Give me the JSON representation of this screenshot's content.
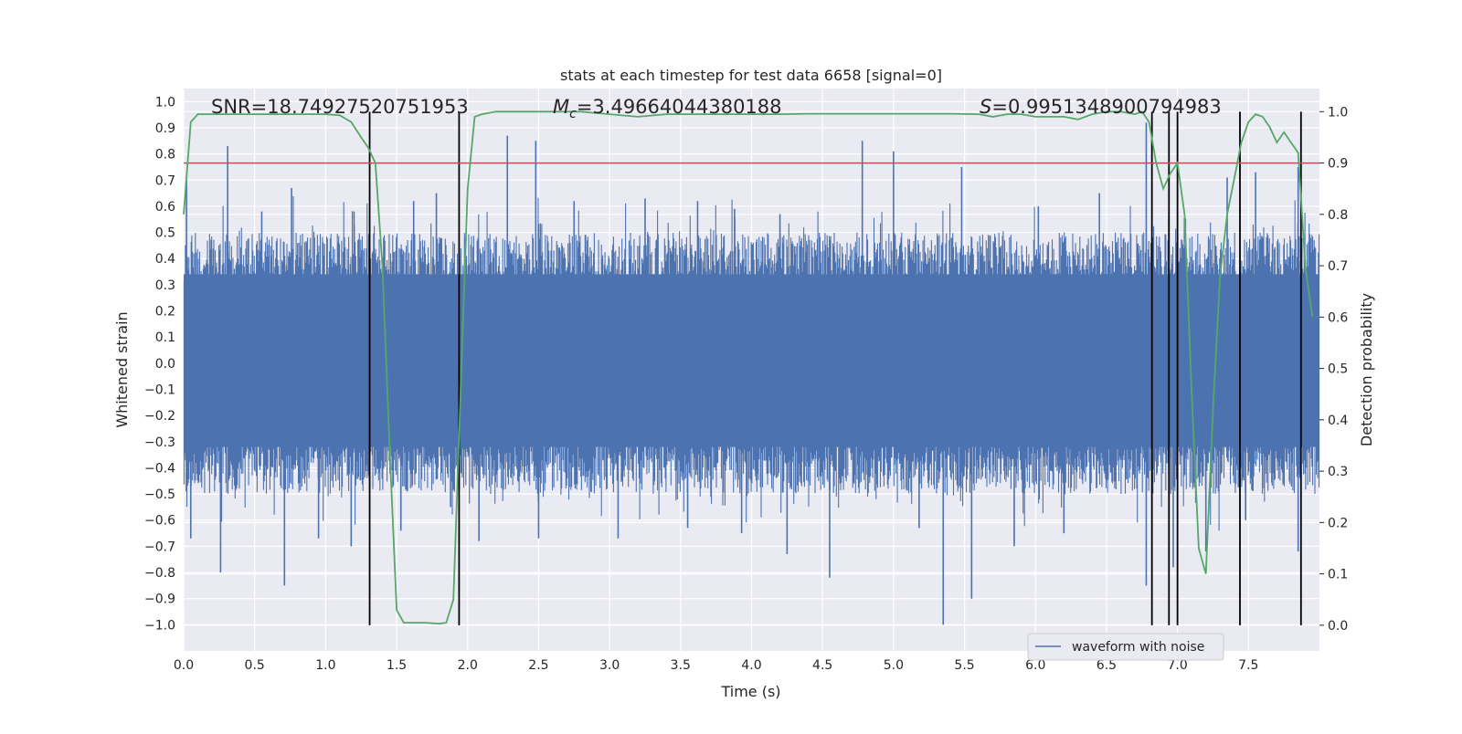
{
  "chart_data": {
    "type": "line",
    "title": "stats at each timestep for test data 6658 [signal=0]",
    "xlabel": "Time (s)",
    "ylabel": "Whitened strain",
    "y2label": "Detection probability",
    "xlim": [
      0,
      8
    ],
    "ylim": [
      -1.1,
      1.05
    ],
    "y2lim": [
      -0.05,
      1.045
    ],
    "x_ticks": [
      "0.0",
      "0.5",
      "1.0",
      "1.5",
      "2.0",
      "2.5",
      "3.0",
      "3.5",
      "4.0",
      "4.5",
      "5.0",
      "5.5",
      "6.0",
      "6.5",
      "7.0",
      "7.5"
    ],
    "y_ticks": [
      "1.0",
      "0.9",
      "0.8",
      "0.7",
      "0.6",
      "0.5",
      "0.4",
      "0.3",
      "0.2",
      "0.1",
      "0.0",
      "−0.1",
      "−0.2",
      "−0.3",
      "−0.4",
      "−0.5",
      "−0.6",
      "−0.7",
      "−0.8",
      "−0.9",
      "−1.0"
    ],
    "y2_ticks": [
      "1.0",
      "0.9",
      "0.8",
      "0.7",
      "0.6",
      "0.5",
      "0.4",
      "0.3",
      "0.2",
      "0.1",
      "0.0"
    ],
    "annotations": {
      "snr": "SNR=18.74927520751953",
      "mc_symbol": "M",
      "mc_sub": "c",
      "mc_value": "=3.49664044380188",
      "s_symbol": "S",
      "s_value": "=0.9951348900794983"
    },
    "legend": {
      "label": "waveform with noise",
      "location": "lower right"
    },
    "threshold_line": {
      "y2": 0.9,
      "color": "#c44e52"
    },
    "detection_probability": {
      "color": "#55a868",
      "x": [
        0.0,
        0.05,
        0.1,
        0.2,
        0.4,
        0.6,
        0.8,
        1.0,
        1.1,
        1.18,
        1.25,
        1.3,
        1.35,
        1.4,
        1.45,
        1.5,
        1.55,
        1.6,
        1.7,
        1.8,
        1.85,
        1.9,
        1.95,
        2.0,
        2.05,
        2.1,
        2.2,
        2.4,
        2.6,
        2.8,
        3.0,
        3.2,
        3.4,
        3.6,
        3.8,
        4.0,
        4.2,
        4.4,
        4.6,
        4.8,
        5.0,
        5.2,
        5.4,
        5.6,
        5.7,
        5.8,
        5.9,
        6.0,
        6.1,
        6.2,
        6.3,
        6.4,
        6.5,
        6.6,
        6.7,
        6.75,
        6.8,
        6.85,
        6.9,
        6.95,
        7.0,
        7.05,
        7.1,
        7.15,
        7.2,
        7.25,
        7.3,
        7.35,
        7.4,
        7.45,
        7.5,
        7.55,
        7.6,
        7.65,
        7.7,
        7.75,
        7.8,
        7.85,
        7.9,
        7.95
      ],
      "y": [
        0.8,
        0.98,
        0.995,
        0.995,
        0.995,
        0.995,
        0.995,
        0.995,
        0.993,
        0.98,
        0.95,
        0.93,
        0.9,
        0.7,
        0.35,
        0.03,
        0.005,
        0.005,
        0.005,
        0.003,
        0.005,
        0.05,
        0.45,
        0.85,
        0.99,
        0.995,
        1.0,
        1.0,
        1.0,
        1.0,
        0.995,
        0.99,
        0.995,
        0.995,
        0.995,
        0.995,
        0.995,
        0.996,
        0.996,
        0.996,
        0.996,
        0.996,
        0.996,
        0.995,
        0.99,
        0.995,
        0.995,
        0.99,
        0.99,
        0.99,
        0.985,
        0.995,
        1.0,
        1.0,
        0.995,
        1.0,
        0.98,
        0.9,
        0.85,
        0.88,
        0.9,
        0.8,
        0.45,
        0.15,
        0.1,
        0.42,
        0.68,
        0.8,
        0.87,
        0.94,
        0.98,
        0.995,
        0.99,
        0.97,
        0.94,
        0.96,
        0.94,
        0.92,
        0.7,
        0.6
      ]
    },
    "waveform": {
      "name": "waveform with noise",
      "color": "#4c72b0",
      "description_count": 1600,
      "spikes": [
        [
          0.02,
          0.7
        ],
        [
          0.31,
          0.83
        ],
        [
          0.55,
          0.58
        ],
        [
          0.76,
          0.67
        ],
        [
          1.2,
          0.58
        ],
        [
          1.62,
          0.62
        ],
        [
          1.78,
          0.65
        ],
        [
          2.28,
          0.87
        ],
        [
          2.48,
          0.85
        ],
        [
          2.75,
          0.62
        ],
        [
          3.25,
          0.63
        ],
        [
          3.62,
          0.62
        ],
        [
          3.88,
          0.59
        ],
        [
          4.2,
          0.57
        ],
        [
          4.78,
          0.85
        ],
        [
          5.0,
          0.81
        ],
        [
          5.48,
          0.75
        ],
        [
          6.02,
          0.6
        ],
        [
          6.45,
          0.65
        ],
        [
          6.78,
          0.92
        ],
        [
          7.35,
          0.71
        ],
        [
          7.55,
          0.73
        ],
        [
          7.85,
          0.75
        ],
        [
          0.05,
          -0.67
        ],
        [
          0.26,
          -0.8
        ],
        [
          0.71,
          -0.85
        ],
        [
          0.95,
          -0.67
        ],
        [
          1.18,
          -0.7
        ],
        [
          1.53,
          -0.64
        ],
        [
          1.88,
          -0.55
        ],
        [
          2.08,
          -0.68
        ],
        [
          2.5,
          -0.67
        ],
        [
          3.06,
          -0.67
        ],
        [
          3.55,
          -0.63
        ],
        [
          3.93,
          -0.65
        ],
        [
          4.25,
          -0.73
        ],
        [
          4.55,
          -0.82
        ],
        [
          5.18,
          -0.63
        ],
        [
          5.35,
          -1.0
        ],
        [
          5.55,
          -0.9
        ],
        [
          5.85,
          -0.7
        ],
        [
          6.2,
          -0.65
        ],
        [
          6.78,
          -0.85
        ],
        [
          6.97,
          -0.78
        ],
        [
          7.2,
          -0.72
        ],
        [
          7.48,
          -0.6
        ],
        [
          7.85,
          -0.72
        ]
      ]
    },
    "vertical_markers": [
      1.31,
      1.94,
      6.82,
      6.94,
      7.0,
      7.44,
      7.87
    ]
  }
}
